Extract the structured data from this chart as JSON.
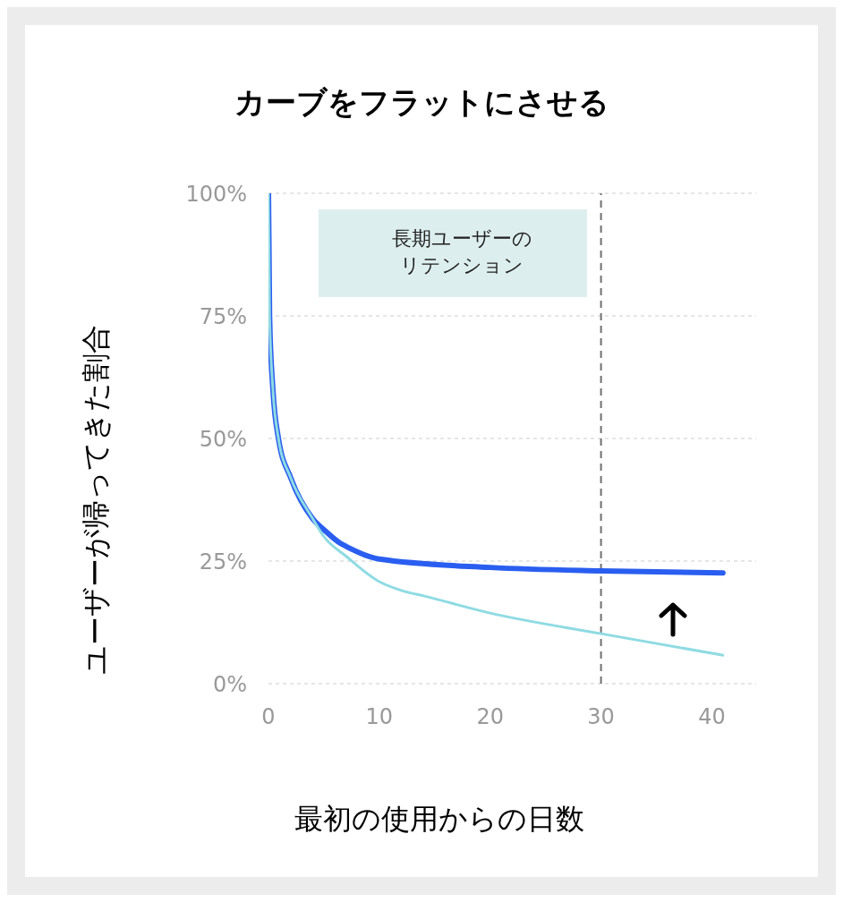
{
  "chart_data": {
    "type": "line",
    "title": "カーブをフラットにさせる",
    "xlabel": "最初の使用からの日数",
    "ylabel": "ユーザーが帰ってきた割合",
    "annotations": [
      "長期ユーザーのリテンション"
    ],
    "series": [
      {
        "color": "#8fdbe3",
        "x": [
          0,
          0.1,
          0.4,
          0.9,
          2,
          4,
          5,
          7,
          10,
          12,
          14,
          20,
          30,
          41
        ],
        "values": [
          100,
          75,
          60,
          50,
          42,
          33.6,
          30,
          26,
          20.8,
          19,
          17.9,
          14.4,
          10.2,
          5.8
        ]
      },
      {
        "color": "#2a5ef0",
        "x": [
          0,
          0.1,
          0.4,
          0.9,
          2,
          4,
          5,
          6.5,
          7,
          10,
          20,
          30,
          41
        ],
        "values": [
          100,
          75,
          60,
          50,
          42,
          33.6,
          31.4,
          28.6,
          28,
          25.4,
          23.7,
          23,
          22.6
        ]
      }
    ],
    "xlim": [
      0,
      44
    ],
    "xticks": [
      0,
      10,
      20,
      30,
      40
    ],
    "ylim": [
      0,
      100
    ],
    "yticks": [
      {
        "value": 0,
        "label": "0%"
      },
      {
        "value": 25,
        "label": "25%"
      },
      {
        "value": 50,
        "label": "50%"
      },
      {
        "value": 75,
        "label": "75%"
      },
      {
        "value": 100,
        "label": "100%"
      }
    ],
    "grid": "y",
    "marker": "none",
    "line_style": "solid",
    "ref_lines": [
      {
        "axis": "x",
        "value": 30,
        "color": "#707070",
        "line_style": "dashed"
      }
    ]
  }
}
